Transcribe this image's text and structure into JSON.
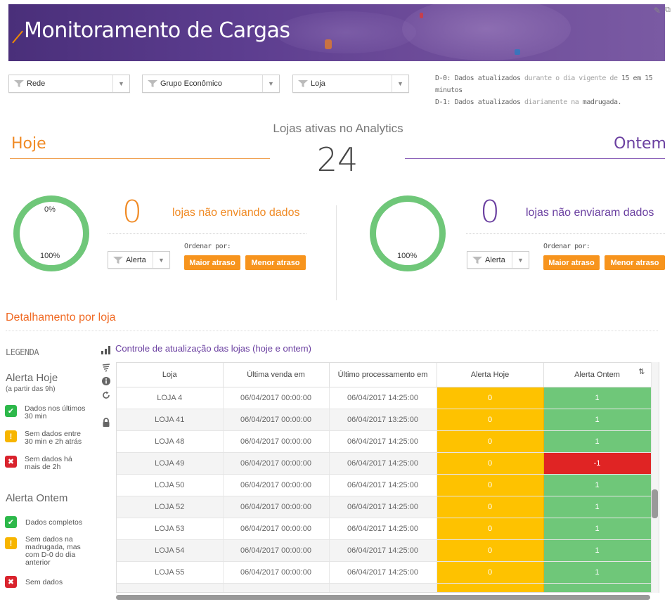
{
  "header": {
    "title": "Monitoramento de Cargas"
  },
  "filters": [
    {
      "label": "Rede"
    },
    {
      "label": "Grupo Econômico"
    },
    {
      "label": "Loja"
    }
  ],
  "notes": {
    "line1_a": "D-0: Dados atualizados ",
    "line1_b": "durante o dia vigente de ",
    "line1_c": "15 em 15 minutos",
    "line2_a": "D-1: Dados atualizados ",
    "line2_b": "diariamente na ",
    "line2_c": "madrugada."
  },
  "summary": {
    "label": "Lojas ativas no Analytics",
    "total": "24",
    "today_label": "Hoje",
    "yesterday_label": "Ontem"
  },
  "today": {
    "donut_top": "0%",
    "donut_bottom": "100%",
    "donut_fraction_not_sending": 0,
    "count": "0",
    "description": "lojas não enviando dados",
    "alert_filter": "Alerta",
    "sort_label": "Ordenar por:",
    "btn_max": "Maior atraso",
    "btn_min": "Menor atraso"
  },
  "yesterday": {
    "donut_bottom": "100%",
    "donut_fraction_not_sent": 0,
    "count": "0",
    "description": "lojas não enviaram dados",
    "alert_filter": "Alerta",
    "sort_label": "Ordenar por:",
    "btn_max": "Maior atraso",
    "btn_min": "Menor atraso"
  },
  "detail": {
    "title": "Detalhamento por loja",
    "table_title": "Controle de atualização das lojas (hoje e ontem)"
  },
  "legend": {
    "title": "LEGENDA",
    "today_title": "Alerta Hoje",
    "today_sub": "(a partir das 9h)",
    "today_items": [
      {
        "icon": "check-icon",
        "text1": "Dados nos últimos",
        "text2": "30 min"
      },
      {
        "icon": "warning-icon",
        "text1": "Sem dados entre",
        "text2": "30 min e 2h atrás"
      },
      {
        "icon": "x-icon",
        "text1": "Sem dados há",
        "text2": "mais de 2h"
      }
    ],
    "yesterday_title": "Alerta Ontem",
    "yesterday_items": [
      {
        "icon": "check-icon",
        "text1": "Dados completos"
      },
      {
        "icon": "warning-icon",
        "text1": "Sem dados na",
        "text2": "madrugada, mas",
        "text3": "com D-0 do dia",
        "text4": "anterior"
      },
      {
        "icon": "x-icon",
        "text1": "Sem dados"
      }
    ]
  },
  "table": {
    "columns": [
      "Loja",
      "Última venda em",
      "Último processamento em",
      "Alerta Hoje",
      "Alerta Ontem"
    ],
    "rows": [
      {
        "loja": "LOJA 4",
        "venda": "06/04/2017 00:00:00",
        "proc": "06/04/2017 14:25:00",
        "hoje": "0",
        "ontem": "1"
      },
      {
        "loja": "LOJA 41",
        "venda": "06/04/2017 00:00:00",
        "proc": "06/04/2017 13:25:00",
        "hoje": "0",
        "ontem": "1"
      },
      {
        "loja": "LOJA 48",
        "venda": "06/04/2017 00:00:00",
        "proc": "06/04/2017 14:25:00",
        "hoje": "0",
        "ontem": "1"
      },
      {
        "loja": "LOJA 49",
        "venda": "06/04/2017 00:00:00",
        "proc": "06/04/2017 14:25:00",
        "hoje": "0",
        "ontem": "-1"
      },
      {
        "loja": "LOJA 50",
        "venda": "06/04/2017 00:00:00",
        "proc": "06/04/2017 14:25:00",
        "hoje": "0",
        "ontem": "1"
      },
      {
        "loja": "LOJA 52",
        "venda": "06/04/2017 00:00:00",
        "proc": "06/04/2017 14:25:00",
        "hoje": "0",
        "ontem": "1"
      },
      {
        "loja": "LOJA 53",
        "venda": "06/04/2017 00:00:00",
        "proc": "06/04/2017 14:25:00",
        "hoje": "0",
        "ontem": "1"
      },
      {
        "loja": "LOJA 54",
        "venda": "06/04/2017 00:00:00",
        "proc": "06/04/2017 14:25:00",
        "hoje": "0",
        "ontem": "1"
      },
      {
        "loja": "LOJA 55",
        "venda": "06/04/2017 00:00:00",
        "proc": "06/04/2017 14:25:00",
        "hoje": "0",
        "ontem": "1"
      }
    ]
  },
  "colors": {
    "accent_orange": "#f7941d",
    "accent_purple": "#6a3fa0",
    "ok_green": "#6fc779",
    "warn_yellow": "#fec200",
    "bad_red": "#e02424"
  }
}
